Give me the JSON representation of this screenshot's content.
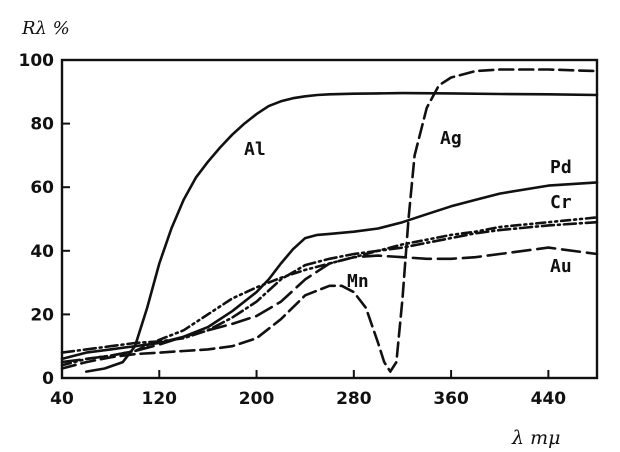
{
  "chart_data": {
    "type": "line",
    "ylabel": "Rλ %",
    "xlabel": "λ mμ",
    "xlim": [
      40,
      480
    ],
    "ylim": [
      0,
      100
    ],
    "xticks": [
      40,
      120,
      200,
      280,
      360,
      440
    ],
    "yticks": [
      0,
      20,
      40,
      60,
      80,
      100
    ],
    "grid": false,
    "legend": "none",
    "series": [
      {
        "name": "Al",
        "style": "solid",
        "x": [
          60,
          75,
          90,
          100,
          110,
          120,
          130,
          140,
          150,
          160,
          170,
          180,
          190,
          200,
          210,
          220,
          230,
          240,
          250,
          260,
          280,
          300,
          320,
          360,
          400,
          440,
          480
        ],
        "y": [
          2,
          3,
          5,
          10,
          22,
          36,
          47,
          56,
          63,
          68,
          72.5,
          76.5,
          80,
          83,
          85.5,
          87,
          88,
          88.6,
          89,
          89.2,
          89.4,
          89.5,
          89.6,
          89.5,
          89.3,
          89.2,
          89
        ]
      },
      {
        "name": "Ag",
        "style": "dashed",
        "x": [
          40,
          60,
          80,
          100,
          120,
          140,
          160,
          180,
          200,
          220,
          240,
          260,
          270,
          280,
          290,
          300,
          305,
          310,
          315,
          320,
          325,
          330,
          340,
          350,
          360,
          380,
          400,
          440,
          480
        ],
        "y": [
          3,
          5,
          6.5,
          7.5,
          8,
          8.5,
          9,
          10,
          12.5,
          18.5,
          26,
          29,
          29,
          27,
          22,
          11,
          5,
          2,
          5,
          25,
          50,
          70,
          85,
          92,
          94.5,
          96.5,
          97,
          97,
          96.5
        ]
      },
      {
        "name": "Pd",
        "style": "solid",
        "x": [
          40,
          60,
          80,
          100,
          120,
          140,
          160,
          180,
          200,
          210,
          220,
          230,
          240,
          250,
          260,
          280,
          300,
          320,
          340,
          360,
          380,
          400,
          440,
          480
        ],
        "y": [
          6,
          8,
          9,
          10,
          11,
          13,
          16,
          21,
          27,
          31,
          36,
          40.5,
          44,
          45,
          45.3,
          46,
          47,
          49,
          51.5,
          54,
          56,
          58,
          60.5,
          61.5
        ]
      },
      {
        "name": "Cr",
        "style": "dash-dot-dot",
        "x": [
          40,
          60,
          80,
          100,
          120,
          140,
          160,
          180,
          200,
          220,
          240,
          260,
          280,
          300,
          320,
          340,
          360,
          380,
          400,
          440,
          480
        ],
        "y": [
          4,
          6,
          7,
          8.5,
          12,
          15,
          20,
          25,
          28.5,
          31.5,
          34,
          36,
          38,
          40,
          42,
          43.5,
          45,
          46,
          47.5,
          49,
          50.5
        ]
      },
      {
        "name": "Mn",
        "style": "dash-dot",
        "x": [
          40,
          60,
          80,
          100,
          120,
          140,
          160,
          180,
          200,
          220,
          240,
          260,
          280,
          300,
          320,
          340,
          360,
          380,
          400,
          440,
          480
        ],
        "y": [
          8,
          9,
          10,
          11,
          11.5,
          12.5,
          15,
          19,
          24,
          31,
          35.5,
          37.5,
          39,
          40,
          41,
          42.5,
          44,
          45.5,
          46.5,
          48,
          49
        ]
      },
      {
        "name": "Au",
        "style": "long-dash",
        "x": [
          40,
          60,
          80,
          100,
          120,
          140,
          160,
          180,
          200,
          220,
          240,
          260,
          280,
          300,
          320,
          340,
          360,
          380,
          400,
          440,
          480
        ],
        "y": [
          5,
          6,
          7,
          8.5,
          10.5,
          13,
          15,
          17,
          19.5,
          24,
          31,
          36,
          38,
          38.5,
          38,
          37.5,
          37.5,
          38,
          39,
          41,
          39
        ]
      }
    ],
    "series_labels": [
      "Al",
      "Ag",
      "Pd",
      "Cr",
      "Mn",
      "Au"
    ]
  }
}
